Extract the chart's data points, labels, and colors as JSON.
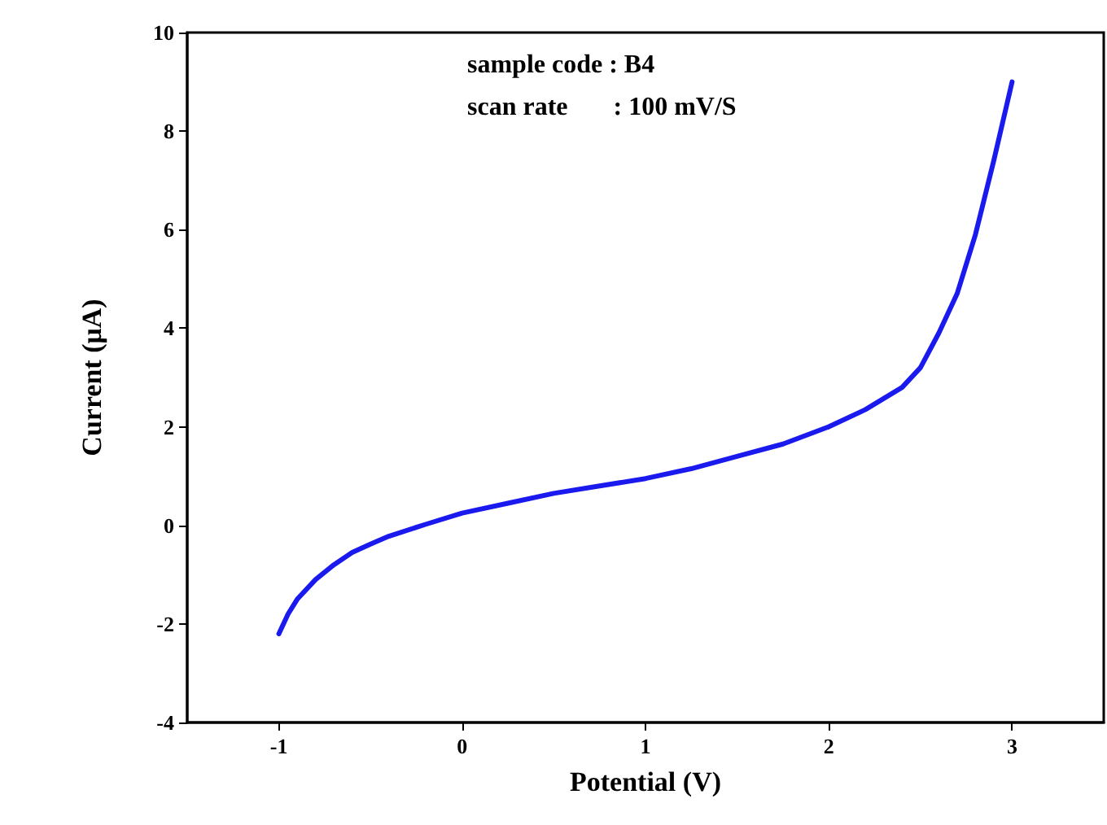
{
  "chart_data": {
    "type": "line",
    "xlabel": "Potential (V)",
    "ylabel": "Current (μA)",
    "annotations": [
      "sample code : B4",
      "scan rate       : 100 mV/S"
    ],
    "xlim": [
      -1.5,
      3.5
    ],
    "xticks": [
      -1,
      0,
      1,
      2,
      3
    ],
    "ylim": [
      -4,
      10
    ],
    "yticks": [
      -4,
      -2,
      0,
      2,
      4,
      6,
      8,
      10
    ],
    "grid": false,
    "marker": "none",
    "line_style": "solid",
    "series": [
      {
        "color": "#1a1aee",
        "x": [
          -1,
          -0.95,
          -0.9,
          -0.8,
          -0.7,
          -0.6,
          -0.5,
          -0.4,
          -0.2,
          0,
          0.25,
          0.5,
          0.75,
          1,
          1.25,
          1.5,
          1.75,
          2,
          2.2,
          2.4,
          2.5,
          2.6,
          2.7,
          2.8,
          2.9,
          3
        ],
        "values": [
          -2.2,
          -1.8,
          -1.5,
          -1.1,
          -0.8,
          -0.55,
          -0.38,
          -0.22,
          0.02,
          0.25,
          0.45,
          0.65,
          0.8,
          0.95,
          1.15,
          1.4,
          1.65,
          2.0,
          2.35,
          2.8,
          3.2,
          3.9,
          4.7,
          5.9,
          7.4,
          9.0
        ]
      }
    ]
  }
}
